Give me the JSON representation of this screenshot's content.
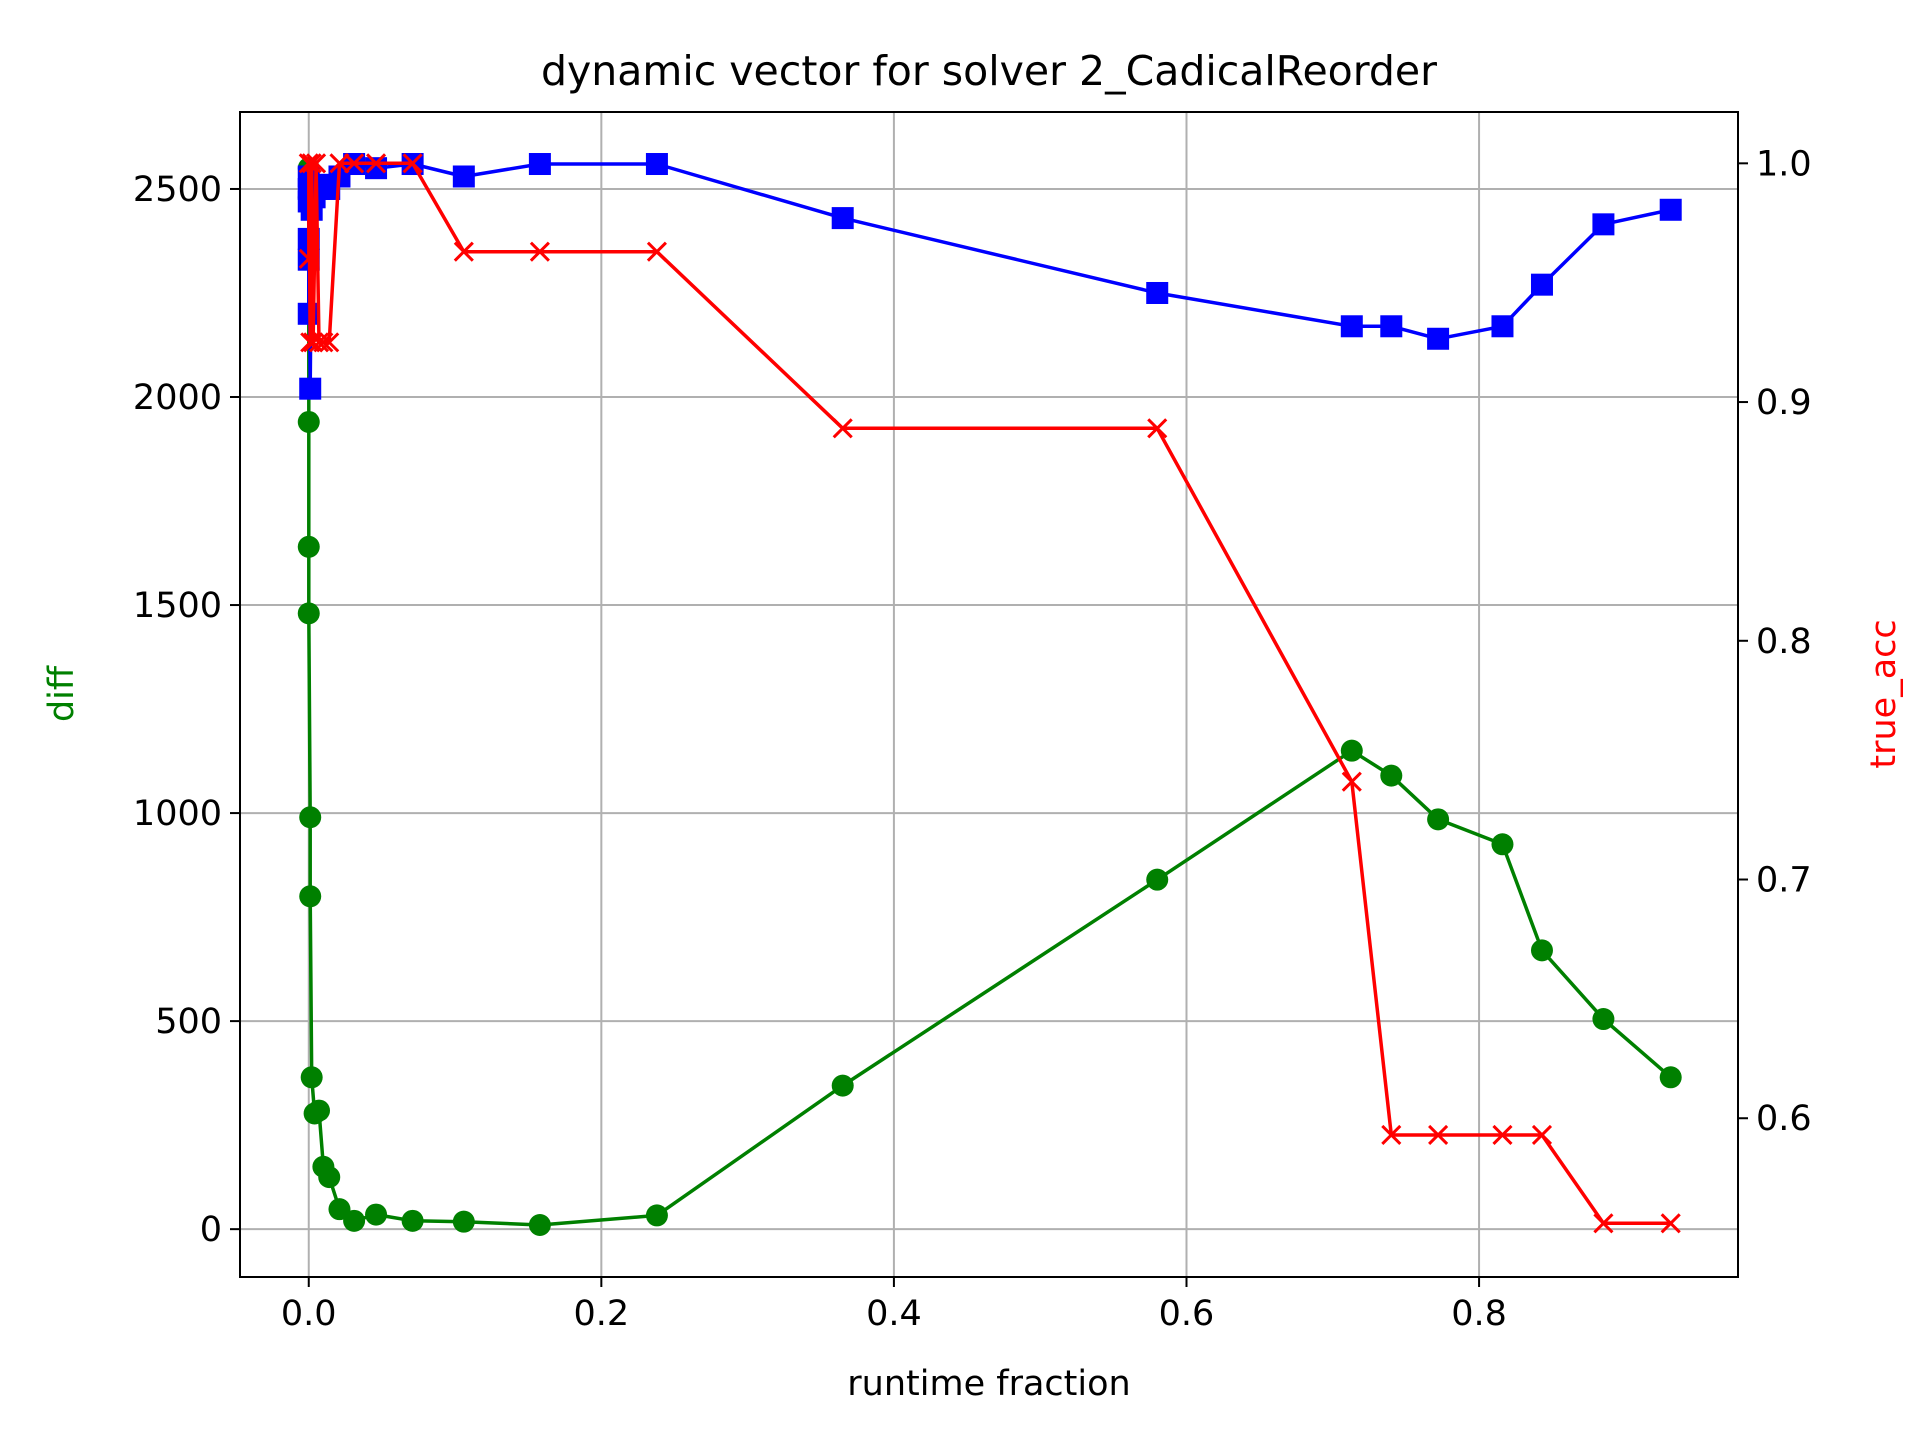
{
  "chart_data": {
    "type": "line",
    "title": "dynamic vector for solver 2_CadicalReorder",
    "xlabel": "runtime fraction",
    "ylabel": "diff",
    "y2label": "true_acc",
    "xlim": [
      -0.047,
      0.977
    ],
    "ylim": [
      -115,
      2685
    ],
    "y2lim": [
      0.5335,
      1.0215
    ],
    "x_ticks": [
      0.0,
      0.2,
      0.4,
      0.6,
      0.8
    ],
    "x_tick_labels": [
      "0.0",
      "0.2",
      "0.4",
      "0.6",
      "0.8"
    ],
    "y_ticks": [
      0,
      500,
      1000,
      1500,
      2000,
      2500
    ],
    "y_tick_labels": [
      "0",
      "500",
      "1000",
      "1500",
      "2000",
      "2500"
    ],
    "y2_ticks": [
      0.6,
      0.7,
      0.8,
      0.9,
      1.0
    ],
    "y2_tick_labels": [
      "0.6",
      "0.7",
      "0.8",
      "0.9",
      "1.0"
    ],
    "grid": true,
    "colors": {
      "diff": "#008000",
      "blue_series": "#0000ff",
      "true_acc": "#ff0000",
      "label_left": "#008000",
      "label_right": "#ff0000"
    },
    "series": [
      {
        "axis": "left",
        "color": "#008000",
        "marker": "circle",
        "points": [
          [
            0.0,
            2550
          ],
          [
            0.0,
            2480
          ],
          [
            0.0,
            1940
          ],
          [
            0.0,
            1640
          ],
          [
            0.0,
            1480
          ],
          [
            0.001,
            990
          ],
          [
            0.001,
            800
          ],
          [
            0.002,
            365
          ],
          [
            0.004,
            278
          ],
          [
            0.007,
            285
          ],
          [
            0.01,
            150
          ],
          [
            0.014,
            125
          ],
          [
            0.021,
            48
          ],
          [
            0.031,
            20
          ],
          [
            0.046,
            35
          ],
          [
            0.071,
            20
          ],
          [
            0.106,
            18
          ],
          [
            0.158,
            10
          ],
          [
            0.238,
            33
          ],
          [
            0.365,
            345
          ],
          [
            0.58,
            840
          ],
          [
            0.713,
            1150
          ],
          [
            0.74,
            1090
          ],
          [
            0.772,
            985
          ],
          [
            0.816,
            925
          ],
          [
            0.843,
            670
          ],
          [
            0.885,
            505
          ],
          [
            0.931,
            365
          ]
        ]
      },
      {
        "axis": "left",
        "color": "#0000ff",
        "marker": "square",
        "points": [
          [
            0.0,
            2200
          ],
          [
            0.0,
            2330
          ],
          [
            0.0,
            2380
          ],
          [
            0.0,
            2470
          ],
          [
            0.0,
            2500
          ],
          [
            0.0,
            2530
          ],
          [
            0.001,
            2020
          ],
          [
            0.002,
            2450
          ],
          [
            0.004,
            2480
          ],
          [
            0.007,
            2500
          ],
          [
            0.01,
            2510
          ],
          [
            0.014,
            2500
          ],
          [
            0.021,
            2530
          ],
          [
            0.031,
            2560
          ],
          [
            0.046,
            2550
          ],
          [
            0.071,
            2560
          ],
          [
            0.106,
            2530
          ],
          [
            0.158,
            2560
          ],
          [
            0.238,
            2560
          ],
          [
            0.365,
            2430
          ],
          [
            0.58,
            2250
          ],
          [
            0.713,
            2170
          ],
          [
            0.74,
            2170
          ],
          [
            0.772,
            2140
          ],
          [
            0.816,
            2170
          ],
          [
            0.843,
            2270
          ],
          [
            0.885,
            2415
          ],
          [
            0.931,
            2450
          ]
        ]
      },
      {
        "axis": "right",
        "color": "#ff0000",
        "marker": "x",
        "points": [
          [
            0.0,
            0.96
          ],
          [
            0.0,
            1.0
          ],
          [
            0.001,
            0.925
          ],
          [
            0.002,
            1.0
          ],
          [
            0.003,
            0.925
          ],
          [
            0.005,
            1.0
          ],
          [
            0.007,
            0.925
          ],
          [
            0.01,
            0.925
          ],
          [
            0.014,
            0.925
          ],
          [
            0.021,
            1.0
          ],
          [
            0.031,
            1.0
          ],
          [
            0.046,
            1.0
          ],
          [
            0.071,
            1.0
          ],
          [
            0.106,
            0.963
          ],
          [
            0.158,
            0.963
          ],
          [
            0.238,
            0.963
          ],
          [
            0.365,
            0.889
          ],
          [
            0.58,
            0.889
          ],
          [
            0.713,
            0.741
          ],
          [
            0.74,
            0.593
          ],
          [
            0.772,
            0.593
          ],
          [
            0.816,
            0.593
          ],
          [
            0.843,
            0.593
          ],
          [
            0.885,
            0.556
          ],
          [
            0.931,
            0.556
          ]
        ]
      }
    ]
  }
}
